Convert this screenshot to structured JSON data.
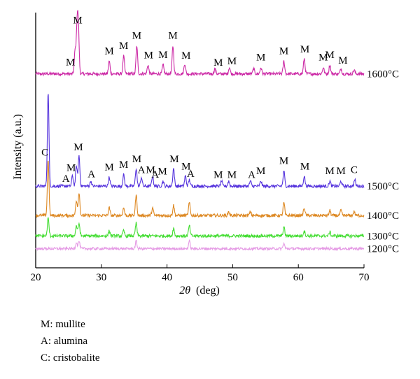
{
  "chart_data": {
    "type": "line",
    "title": "",
    "xlabel_symbol": "2θ",
    "xlabel_unit": "(deg)",
    "ylabel": "Intensity (a.u.)",
    "xlim": [
      20,
      70
    ],
    "x_ticks": [
      20,
      30,
      40,
      50,
      60,
      70
    ],
    "y_ticks_shown": false,
    "grid": false,
    "series": [
      {
        "name": "1600°C",
        "color": "#cc2aa6",
        "baseline_frac": 0.76,
        "noise": 0.006,
        "peaks": [
          [
            26.0,
            0.09
          ],
          [
            26.3,
            0.18
          ],
          [
            26.5,
            0.17
          ],
          [
            31.2,
            0.05
          ],
          [
            33.4,
            0.07
          ],
          [
            35.4,
            0.11
          ],
          [
            37.1,
            0.035
          ],
          [
            39.4,
            0.035
          ],
          [
            40.9,
            0.11
          ],
          [
            42.7,
            0.04
          ],
          [
            47.3,
            0.02
          ],
          [
            49.5,
            0.025
          ],
          [
            53.2,
            0.02
          ],
          [
            54.3,
            0.025
          ],
          [
            57.8,
            0.05
          ],
          [
            60.9,
            0.06
          ],
          [
            63.8,
            0.025
          ],
          [
            64.8,
            0.035
          ],
          [
            66.5,
            0.02
          ],
          [
            68.5,
            0.015
          ]
        ]
      },
      {
        "name": "1500°C",
        "color": "#5533dd",
        "baseline_frac": 0.32,
        "noise": 0.006,
        "peaks": [
          [
            21.9,
            0.37
          ],
          [
            25.6,
            0.04
          ],
          [
            26.2,
            0.08
          ],
          [
            26.6,
            0.12
          ],
          [
            28.4,
            0.02
          ],
          [
            31.2,
            0.035
          ],
          [
            33.4,
            0.045
          ],
          [
            35.3,
            0.07
          ],
          [
            36.1,
            0.035
          ],
          [
            37.8,
            0.04
          ],
          [
            39.4,
            0.02
          ],
          [
            41.0,
            0.07
          ],
          [
            42.8,
            0.04
          ],
          [
            43.4,
            0.025
          ],
          [
            48.3,
            0.02
          ],
          [
            49.4,
            0.02
          ],
          [
            52.7,
            0.02
          ],
          [
            54.3,
            0.02
          ],
          [
            57.8,
            0.06
          ],
          [
            60.9,
            0.04
          ],
          [
            64.8,
            0.02
          ],
          [
            66.5,
            0.02
          ],
          [
            68.6,
            0.025
          ]
        ]
      },
      {
        "name": "1400°C",
        "color": "#dd8822",
        "baseline_frac": 0.205,
        "noise": 0.006,
        "peaks": [
          [
            21.9,
            0.22
          ],
          [
            26.2,
            0.06
          ],
          [
            26.6,
            0.09
          ],
          [
            31.2,
            0.03
          ],
          [
            33.4,
            0.03
          ],
          [
            35.3,
            0.08
          ],
          [
            37.8,
            0.03
          ],
          [
            41.0,
            0.04
          ],
          [
            43.4,
            0.05
          ],
          [
            49.4,
            0.015
          ],
          [
            52.7,
            0.015
          ],
          [
            57.8,
            0.05
          ],
          [
            60.9,
            0.03
          ],
          [
            64.8,
            0.02
          ],
          [
            66.5,
            0.02
          ],
          [
            68.5,
            0.015
          ]
        ]
      },
      {
        "name": "1300°C",
        "color": "#44dd33",
        "baseline_frac": 0.125,
        "noise": 0.006,
        "peaks": [
          [
            21.9,
            0.07
          ],
          [
            26.2,
            0.04
          ],
          [
            26.6,
            0.05
          ],
          [
            31.2,
            0.02
          ],
          [
            33.4,
            0.02
          ],
          [
            35.3,
            0.05
          ],
          [
            41.0,
            0.03
          ],
          [
            43.4,
            0.04
          ],
          [
            57.8,
            0.035
          ],
          [
            60.9,
            0.02
          ],
          [
            64.8,
            0.015
          ]
        ]
      },
      {
        "name": "1200°C",
        "color": "#e59be5",
        "baseline_frac": 0.075,
        "noise": 0.005,
        "peaks": [
          [
            26.2,
            0.025
          ],
          [
            26.6,
            0.03
          ],
          [
            35.3,
            0.03
          ],
          [
            43.4,
            0.03
          ],
          [
            57.8,
            0.02
          ]
        ]
      }
    ],
    "peak_labels": [
      {
        "series": "1600°C",
        "labels": [
          {
            "x": 25.3,
            "t": "M"
          },
          {
            "x": 26.4,
            "t": "M"
          },
          {
            "x": 31.2,
            "t": "M"
          },
          {
            "x": 33.4,
            "t": "M"
          },
          {
            "x": 35.4,
            "t": "M"
          },
          {
            "x": 37.2,
            "t": "M"
          },
          {
            "x": 39.4,
            "t": "M"
          },
          {
            "x": 40.9,
            "t": "M"
          },
          {
            "x": 42.9,
            "t": "M"
          },
          {
            "x": 47.8,
            "t": "M"
          },
          {
            "x": 49.9,
            "t": "M"
          },
          {
            "x": 54.3,
            "t": "M"
          },
          {
            "x": 57.8,
            "t": "M"
          },
          {
            "x": 61.0,
            "t": "M"
          },
          {
            "x": 63.8,
            "t": "M"
          },
          {
            "x": 64.8,
            "t": "M"
          },
          {
            "x": 66.8,
            "t": "M"
          }
        ]
      },
      {
        "series": "1500°C",
        "labels": [
          {
            "x": 21.4,
            "t": "C"
          },
          {
            "x": 25.4,
            "t": "M"
          },
          {
            "x": 26.5,
            "t": "M"
          },
          {
            "x": 24.6,
            "t": "A"
          },
          {
            "x": 28.5,
            "t": "A"
          },
          {
            "x": 31.2,
            "t": "M"
          },
          {
            "x": 33.4,
            "t": "M"
          },
          {
            "x": 35.4,
            "t": "M"
          },
          {
            "x": 37.5,
            "t": "M"
          },
          {
            "x": 36.1,
            "t": "A"
          },
          {
            "x": 38.2,
            "t": "A"
          },
          {
            "x": 39.3,
            "t": "M"
          },
          {
            "x": 41.1,
            "t": "M"
          },
          {
            "x": 42.9,
            "t": "M"
          },
          {
            "x": 43.6,
            "t": "A"
          },
          {
            "x": 47.8,
            "t": "M"
          },
          {
            "x": 49.9,
            "t": "M"
          },
          {
            "x": 52.9,
            "t": "A"
          },
          {
            "x": 54.3,
            "t": "M"
          },
          {
            "x": 57.8,
            "t": "M"
          },
          {
            "x": 61.0,
            "t": "M"
          },
          {
            "x": 64.8,
            "t": "M"
          },
          {
            "x": 66.5,
            "t": "M"
          },
          {
            "x": 68.5,
            "t": "C"
          }
        ]
      }
    ],
    "notes": [
      "M: mullite",
      "A: alumina",
      "C: cristobalite"
    ]
  }
}
